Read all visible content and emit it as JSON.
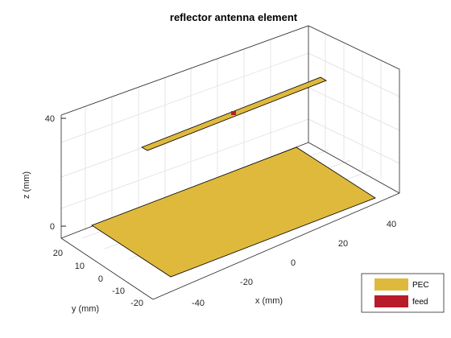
{
  "figure": {
    "title": "reflector antenna element",
    "xlabel": "x (mm)",
    "ylabel": "y (mm)",
    "zlabel": "z (mm)",
    "xticks": [
      "-40",
      "-20",
      "0",
      "20",
      "40"
    ],
    "yticks": [
      "-20",
      "-10",
      "0",
      "10",
      "20"
    ],
    "zticks": [
      "0",
      "40"
    ],
    "legend": [
      {
        "label": "PEC",
        "color": "#DFB93C"
      },
      {
        "label": "feed",
        "color": "#B81C2A"
      }
    ],
    "colors": {
      "pec": "#DFB93C",
      "feed": "#B81C2A",
      "edge": "#000000",
      "grid": "#E6E6E6",
      "axis": "#262626"
    }
  }
}
